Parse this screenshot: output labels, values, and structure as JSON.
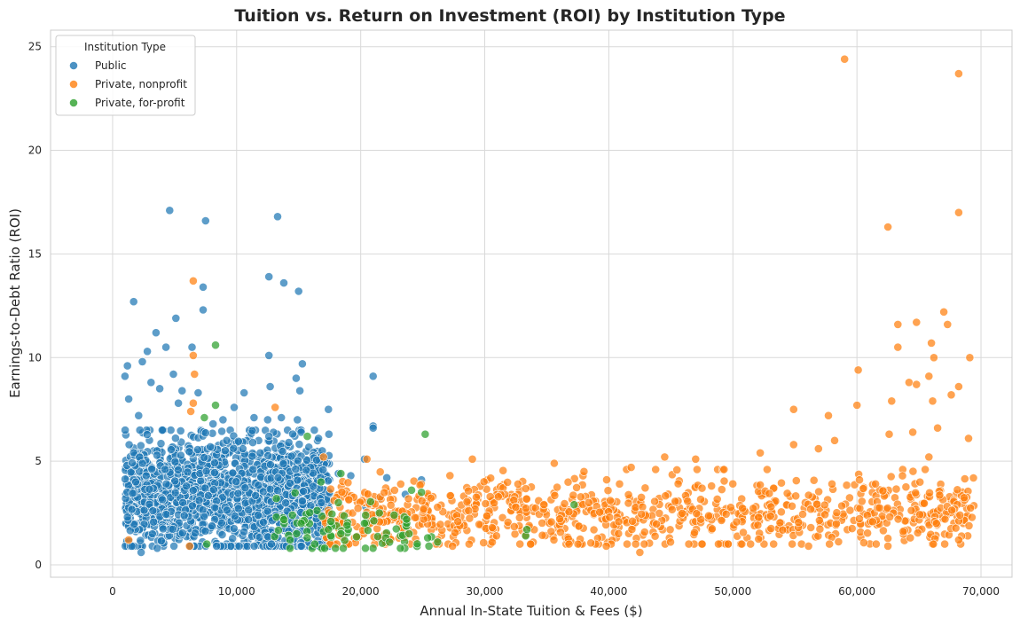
{
  "chart_data": {
    "type": "scatter",
    "title": "Tuition vs. Return on Investment (ROI) by Institution Type",
    "xlabel": "Annual In-State Tuition & Fees ($)",
    "ylabel": "Earnings-to-Debt Ratio (ROI)",
    "xlim": [
      -5000,
      72500
    ],
    "ylim": [
      -0.6,
      25.8
    ],
    "x_ticks": [
      0,
      10000,
      20000,
      30000,
      40000,
      50000,
      60000,
      70000
    ],
    "x_tick_labels": [
      "0",
      "10,000",
      "20,000",
      "30,000",
      "40,000",
      "50,000",
      "60,000",
      "70,000"
    ],
    "y_ticks": [
      0,
      5,
      10,
      15,
      20,
      25
    ],
    "y_tick_labels": [
      "0",
      "5",
      "10",
      "15",
      "20",
      "25"
    ],
    "grid": true,
    "legend": {
      "title": "Institution Type",
      "placement": "top-left"
    },
    "series": [
      {
        "name": "Public",
        "color": "#1f77b4",
        "points": [
          [
            4600,
            17.1
          ],
          [
            7500,
            16.6
          ],
          [
            13300,
            16.8
          ],
          [
            12600,
            13.9
          ],
          [
            13800,
            13.6
          ],
          [
            15000,
            13.2
          ],
          [
            1700,
            12.7
          ],
          [
            5100,
            11.9
          ],
          [
            7300,
            12.3
          ],
          [
            7300,
            13.4
          ],
          [
            3500,
            11.2
          ],
          [
            2800,
            10.3
          ],
          [
            4300,
            10.5
          ],
          [
            6400,
            10.5
          ],
          [
            12600,
            10.1
          ],
          [
            15300,
            9.7
          ],
          [
            21000,
            9.1
          ],
          [
            1200,
            9.6
          ],
          [
            2400,
            9.8
          ],
          [
            4900,
            9.2
          ],
          [
            14800,
            9.0
          ],
          [
            12700,
            8.6
          ],
          [
            10600,
            8.3
          ],
          [
            15100,
            8.4
          ],
          [
            9800,
            7.6
          ],
          [
            17400,
            7.5
          ],
          [
            11400,
            7.1
          ],
          [
            12500,
            7.0
          ],
          [
            14900,
            7.0
          ],
          [
            13600,
            7.1
          ],
          [
            8900,
            7.0
          ],
          [
            21000,
            6.7
          ],
          [
            21000,
            6.6
          ],
          [
            15200,
            6.4
          ],
          [
            12600,
            6.2
          ],
          [
            14200,
            5.9
          ],
          [
            11300,
            5.9
          ],
          [
            16600,
            6.1
          ],
          [
            20300,
            5.1
          ],
          [
            22100,
            4.2
          ],
          [
            24900,
            4.1
          ],
          [
            2100,
            7.2
          ],
          [
            1300,
            8.0
          ],
          [
            1000,
            9.1
          ],
          [
            3100,
            8.8
          ],
          [
            3800,
            8.5
          ],
          [
            5600,
            8.4
          ],
          [
            6900,
            8.3
          ],
          [
            2200,
            6.5
          ],
          [
            5300,
            7.8
          ],
          [
            8100,
            6.8
          ],
          [
            9200,
            6.0
          ],
          [
            10500,
            5.6
          ],
          [
            11900,
            5.4
          ],
          [
            16900,
            5.5
          ],
          [
            18200,
            4.4
          ],
          [
            19200,
            4.3
          ],
          [
            23600,
            3.4
          ],
          [
            21500,
            3.2
          ],
          [
            20400,
            2.8
          ],
          [
            1200,
            2.3
          ],
          [
            2300,
            0.6
          ],
          [
            3600,
            0.8
          ],
          [
            12800,
            1.0
          ],
          [
            14000,
            0.9
          ],
          [
            10200,
            0.9
          ]
        ],
        "cluster": {
          "x_range": [
            1000,
            17500
          ],
          "y_range": [
            0.9,
            6.5
          ],
          "count": 1500,
          "y_center": 3.3
        }
      },
      {
        "name": "Private, nonprofit",
        "color": "#ff7f0e",
        "points": [
          [
            59000,
            24.4
          ],
          [
            68200,
            23.7
          ],
          [
            68200,
            17.0
          ],
          [
            62500,
            16.3
          ],
          [
            6500,
            13.7
          ],
          [
            67000,
            12.2
          ],
          [
            63300,
            11.6
          ],
          [
            64800,
            11.7
          ],
          [
            67300,
            11.6
          ],
          [
            66000,
            10.7
          ],
          [
            63300,
            10.5
          ],
          [
            6500,
            10.1
          ],
          [
            60100,
            9.4
          ],
          [
            66200,
            10.0
          ],
          [
            69100,
            10.0
          ],
          [
            65800,
            9.1
          ],
          [
            64200,
            8.8
          ],
          [
            64800,
            8.7
          ],
          [
            68200,
            8.6
          ],
          [
            66100,
            7.9
          ],
          [
            62800,
            7.9
          ],
          [
            60000,
            7.7
          ],
          [
            57700,
            7.2
          ],
          [
            54900,
            7.5
          ],
          [
            67600,
            8.2
          ],
          [
            6600,
            9.2
          ],
          [
            6500,
            7.8
          ],
          [
            13100,
            7.6
          ],
          [
            6300,
            7.4
          ],
          [
            58200,
            6.0
          ],
          [
            62600,
            6.3
          ],
          [
            64500,
            6.4
          ],
          [
            56900,
            5.6
          ],
          [
            54900,
            5.8
          ],
          [
            52200,
            5.4
          ],
          [
            47000,
            5.1
          ],
          [
            44500,
            5.2
          ],
          [
            41800,
            4.7
          ],
          [
            38000,
            4.5
          ],
          [
            35600,
            4.9
          ],
          [
            29000,
            5.1
          ],
          [
            20500,
            5.1
          ],
          [
            17000,
            5.2
          ],
          [
            42500,
            0.6
          ],
          [
            39800,
            0.9
          ],
          [
            33700,
            1.0
          ],
          [
            27400,
            0.9
          ],
          [
            6200,
            0.9
          ],
          [
            1300,
            1.2
          ],
          [
            60200,
            4.1
          ],
          [
            61500,
            3.9
          ],
          [
            65800,
            5.2
          ],
          [
            69000,
            6.1
          ],
          [
            66500,
            6.6
          ],
          [
            68300,
            2.4
          ],
          [
            68200,
            1.2
          ],
          [
            62500,
            0.9
          ],
          [
            56100,
            0.9
          ],
          [
            64300,
            1.3
          ],
          [
            66400,
            2.0
          ]
        ],
        "cluster": {
          "x_range": [
            17000,
            69500
          ],
          "y_range": [
            1.0,
            4.6
          ],
          "count": 900,
          "y_center": 2.4
        }
      },
      {
        "name": "Private, for-profit",
        "color": "#2ca02c",
        "points": [
          [
            8300,
            10.6
          ],
          [
            8300,
            7.7
          ],
          [
            7400,
            7.1
          ],
          [
            25200,
            6.3
          ],
          [
            15700,
            6.2
          ],
          [
            18400,
            4.4
          ],
          [
            16800,
            4.0
          ],
          [
            13200,
            3.2
          ],
          [
            14500,
            2.4
          ],
          [
            15200,
            2.0
          ],
          [
            17000,
            1.6
          ],
          [
            17600,
            1.4
          ],
          [
            18400,
            1.5
          ],
          [
            19000,
            1.7
          ],
          [
            18200,
            3.0
          ],
          [
            21500,
            2.5
          ],
          [
            23900,
            1.5
          ],
          [
            25500,
            0.9
          ],
          [
            33300,
            1.4
          ],
          [
            33400,
            1.7
          ],
          [
            37200,
            2.9
          ],
          [
            24100,
            3.6
          ],
          [
            25400,
            1.3
          ],
          [
            22700,
            2.4
          ],
          [
            17600,
            2.1
          ],
          [
            16300,
            1.0
          ],
          [
            17100,
            0.8
          ],
          [
            7600,
            1.0
          ],
          [
            13200,
            2.3
          ],
          [
            14300,
            1.2
          ],
          [
            17400,
            1.7
          ],
          [
            18900,
            1.9
          ],
          [
            20300,
            2.0
          ],
          [
            23700,
            2.2
          ],
          [
            24900,
            3.5
          ],
          [
            26200,
            1.1
          ]
        ],
        "cluster": {
          "x_range": [
            13000,
            26000
          ],
          "y_range": [
            0.8,
            4.0
          ],
          "count": 60,
          "y_center": 1.8
        }
      }
    ]
  }
}
